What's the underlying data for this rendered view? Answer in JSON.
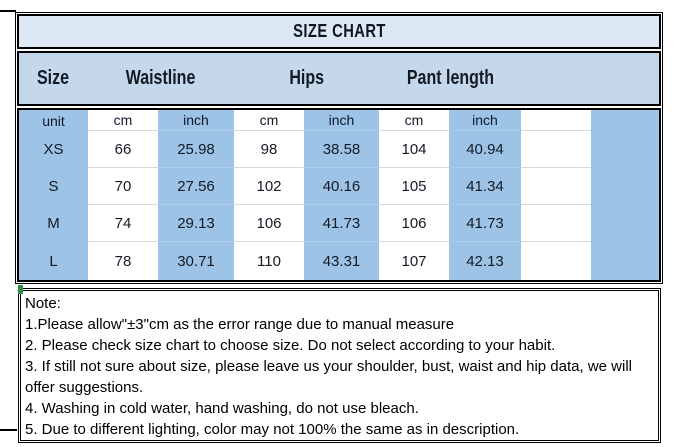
{
  "title": "SIZE CHART",
  "header": {
    "labels": [
      "Size",
      "Waistline",
      "Hips",
      "Pant length"
    ]
  },
  "table": {
    "unit_label": "unit",
    "unit_row": [
      "cm",
      "inch",
      "cm",
      "inch",
      "cm",
      "inch"
    ],
    "rows": [
      {
        "size": "XS",
        "waistline_cm": "66",
        "waistline_inch": "25.98",
        "hips_cm": "98",
        "hips_inch": "38.58",
        "pant_length_cm": "104",
        "pant_length_inch": "40.94"
      },
      {
        "size": "S",
        "waistline_cm": "70",
        "waistline_inch": "27.56",
        "hips_cm": "102",
        "hips_inch": "40.16",
        "pant_length_cm": "105",
        "pant_length_inch": "41.34"
      },
      {
        "size": "M",
        "waistline_cm": "74",
        "waistline_inch": "29.13",
        "hips_cm": "106",
        "hips_inch": "41.73",
        "pant_length_cm": "106",
        "pant_length_inch": "41.73"
      },
      {
        "size": "L",
        "waistline_cm": "78",
        "waistline_inch": "30.71",
        "hips_cm": "110",
        "hips_inch": "43.31",
        "pant_length_cm": "107",
        "pant_length_inch": "42.13"
      }
    ]
  },
  "notes": {
    "items": [
      "Note:",
      "1.Please allow\"±3\"cm as the error range due to manual measure",
      "2. Please check size chart to choose size. Do not select according to your habit.",
      "3. If still not sure about size, please leave us your shoulder, bust, waist and hip data, we will offer suggestions.",
      "4. Washing in cold water, hand washing, do not use bleach.",
      "5. Due to different lighting, color may not 100% the same as in description."
    ]
  },
  "colors": {
    "title_bg": "#dce8f4",
    "header_bg": "#c5d8eb",
    "stripe_blue": "#9dc3e6",
    "border": "#000000",
    "note_marker_green": "#2d8c46"
  }
}
